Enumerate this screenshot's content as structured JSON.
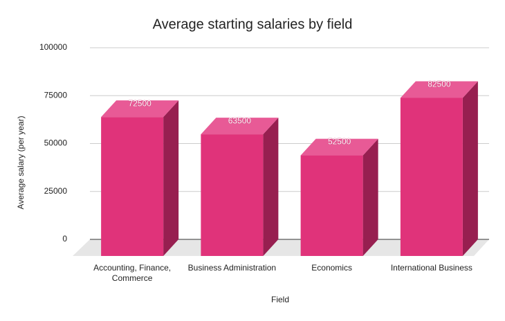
{
  "chart_data": {
    "type": "bar3d",
    "title": "Average starting salaries by field",
    "x_label": "Field",
    "y_label": "Average salary (per year)",
    "categories": [
      "Accounting, Finance, Commerce",
      "Business Administration",
      "Economics",
      "International Business"
    ],
    "values": [
      72500,
      63500,
      52500,
      82500
    ],
    "color": "#e0337a",
    "ylim": [
      0,
      100000
    ],
    "yticks": [
      0,
      25000,
      50000,
      75000,
      100000
    ],
    "grid": true
  }
}
